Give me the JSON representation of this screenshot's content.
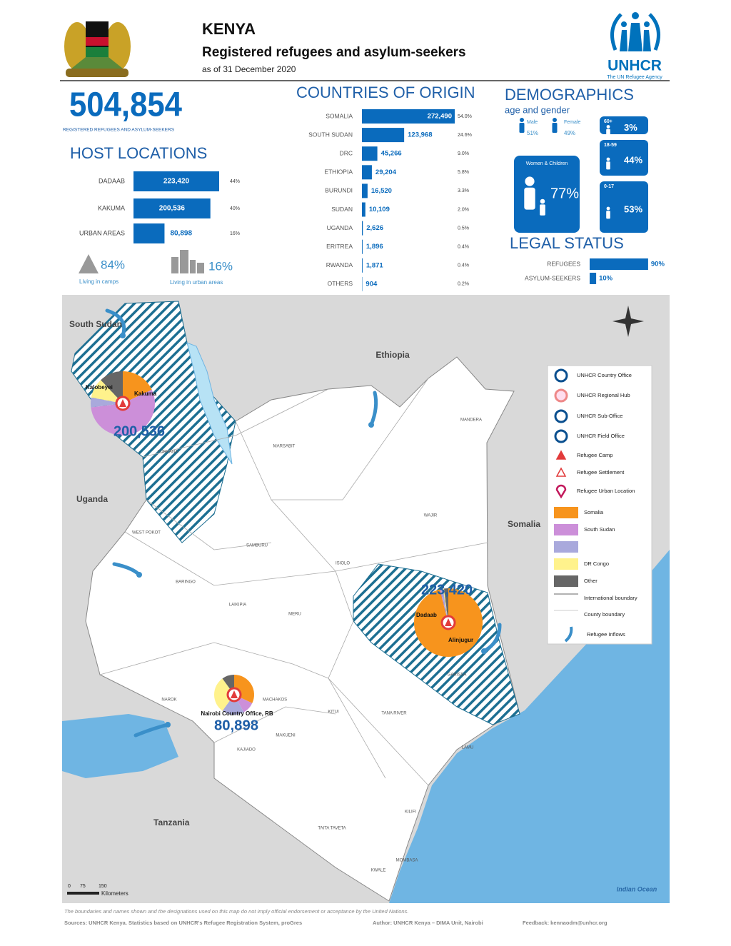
{
  "header": {
    "title": "KENYA",
    "subtitle": "Registered refugees and asylum-seekers",
    "date": "as of 31 December 2020",
    "logo_text": "UNHCR",
    "logo_tagline": "The UN Refugee Agency"
  },
  "total": {
    "value": "504,854",
    "label": "REGISTERED REFUGEES AND ASYLUM-SEEKERS"
  },
  "host_locations": {
    "title": "HOST LOCATIONS",
    "categories": [
      "DADAAB",
      "KAKUMA",
      "URBAN AREAS"
    ],
    "values": [
      223420,
      200536,
      80898
    ],
    "value_labels": [
      "223,420",
      "200,536",
      "80,898"
    ],
    "shares": [
      "44%",
      "40%",
      "16%"
    ],
    "color": "#0a6bbd"
  },
  "living": {
    "camps_share": "84%",
    "camps_label": "Living in camps",
    "urban_share": "16%",
    "urban_label": "Living in urban areas"
  },
  "countries_of_origin": {
    "title": "COUNTRIES OF ORIGIN",
    "categories": [
      "SOMALIA",
      "SOUTH SUDAN",
      "DRC",
      "ETHIOPIA",
      "BURUNDI",
      "SUDAN",
      "UGANDA",
      "ERITREA",
      "RWANDA",
      "OTHERS"
    ],
    "values": [
      272490,
      123968,
      45266,
      29204,
      16520,
      10109,
      2626,
      1896,
      1871,
      904
    ],
    "value_labels": [
      "272,490",
      "123,968",
      "45,266",
      "29,204",
      "16,520",
      "10,109",
      "2,626",
      "1,896",
      "1,871",
      "904"
    ],
    "shares": [
      "54.0%",
      "24.6%",
      "9.0%",
      "5.8%",
      "3.3%",
      "2.0%",
      "0.5%",
      "0.4%",
      "0.4%",
      "0.2%"
    ],
    "color": "#0a6bbd"
  },
  "demographics": {
    "title": "DEMOGRAPHICS",
    "subtitle": "age and gender",
    "male_label": "Male",
    "male_share": "51%",
    "female_label": "Female",
    "female_share": "49%",
    "women_children_label": "Women & Children",
    "women_children_share": "77%",
    "age_groups": [
      {
        "label": "60+",
        "share": "3%"
      },
      {
        "label": "18-59",
        "share": "44%"
      },
      {
        "label": "0-17",
        "share": "53%"
      }
    ]
  },
  "legal_status": {
    "title": "LEGAL STATUS",
    "categories": [
      "REFUGEES",
      "ASYLUM-SEEKERS"
    ],
    "values": [
      90,
      10
    ],
    "value_labels": [
      "90%",
      "10%"
    ],
    "color": "#0a6bbd"
  },
  "map": {
    "countries": [
      "South Sudan",
      "Ethiopia",
      "Uganda",
      "Somalia",
      "Tanzania",
      "Indian Ocean"
    ],
    "counties": [
      "TURKANA",
      "MARSABIT",
      "MANDERA",
      "WAJIR",
      "ISIOLO",
      "SAMBURU",
      "GARISSA",
      "TANA RIVER",
      "KITUI",
      "LAMU",
      "KILIFI",
      "MOMBASA",
      "KWALE",
      "TAITA TAVETA",
      "MAKUENI",
      "KAJIADO",
      "NAROK",
      "MACHAKOS",
      "MERU",
      "LAIKIPIA",
      "BARINGO",
      "WEST POKOT"
    ],
    "pie_categories": [
      "Somalia",
      "South Sudan",
      null,
      "DR Congo",
      "Other"
    ],
    "pie_colors": [
      "#f7941d",
      "#cc8fd9",
      "#a9a9dc",
      "#fff28c",
      "#666666"
    ],
    "camps": [
      {
        "name": "Kakuma",
        "secondary": "Kalobeyei",
        "total": "200,536",
        "shares": [
          18,
          55,
          5,
          10,
          12
        ]
      },
      {
        "name": "Dadaab",
        "secondary": "Alinjugur",
        "total": "223,420",
        "shares": [
          96,
          0.5,
          1,
          0.5,
          2
        ]
      },
      {
        "name": "Nairobi Country Office, RB",
        "secondary": null,
        "total": "80,898",
        "shares": [
          32,
          10,
          18,
          30,
          10
        ]
      }
    ],
    "legend_symbols": [
      "UNHCR Country Office",
      "UNHCR Regional Hub",
      "UNHCR Sub-Office",
      "UNHCR Field Office",
      "Refugee Camp",
      "Refugee Settlement",
      "Refugee Urban Location"
    ],
    "legend_boundaries": [
      "International boundary",
      "County boundary"
    ],
    "legend_inflows": "Refugee Inflows",
    "scale_ticks": [
      "0",
      "75",
      "150"
    ],
    "scale_unit": "Kilometers"
  },
  "footer": {
    "disclaimer": "The boundaries and names shown and the designations used on this map do not imply official endorsement or acceptance by the United Nations.",
    "sources": "Sources: UNHCR Kenya. Statistics based on UNHCR's Refugee Registration System, proGres",
    "author": "Author: UNHCR Kenya – DIMA Unit, Nairobi",
    "feedback": "Feedback: kennaodm@unhcr.org"
  }
}
